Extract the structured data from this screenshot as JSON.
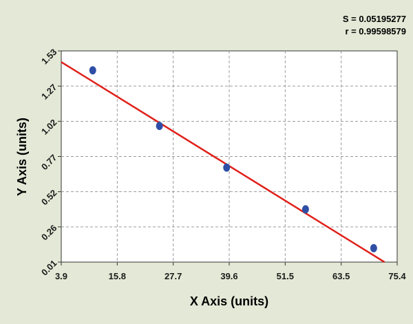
{
  "stats": {
    "s_line": "S = 0.05195277",
    "r_line": "r = 0.99598579"
  },
  "colors": {
    "background": "#e4e8d6",
    "plot_area": "#ffffff",
    "grid": "#9a9a9a",
    "points": "#2f4fa6",
    "fit_line": "#e0201a"
  },
  "chart_data": {
    "type": "scatter",
    "title": "",
    "xlabel": "X Axis (units)",
    "ylabel": "Y Axis (units)",
    "xlim": [
      3.9,
      75.4
    ],
    "ylim": [
      0.01,
      1.53
    ],
    "x_ticks": [
      "3.9",
      "15.8",
      "27.7",
      "39.6",
      "51.5",
      "63.5",
      "75.4"
    ],
    "y_ticks": [
      "0.01",
      "0.26",
      "0.52",
      "0.77",
      "1.02",
      "1.27",
      "1.53"
    ],
    "grid": true,
    "series": [
      {
        "points": [
          {
            "x": 10.6,
            "y": 1.39
          },
          {
            "x": 24.8,
            "y": 0.99
          },
          {
            "x": 39.1,
            "y": 0.69
          },
          {
            "x": 55.9,
            "y": 0.39
          },
          {
            "x": 70.4,
            "y": 0.11
          }
        ]
      }
    ],
    "fit_line": {
      "x": [
        3.9,
        72.7
      ],
      "y": [
        1.45,
        0.01
      ]
    }
  }
}
